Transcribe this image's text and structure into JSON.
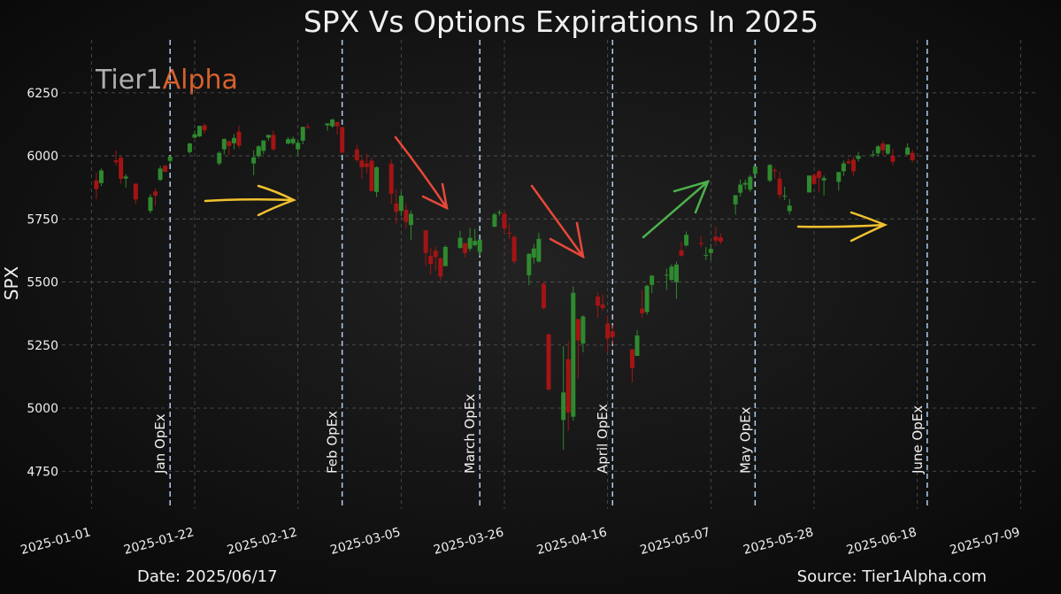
{
  "chart_data": {
    "type": "candlestick",
    "title": "SPX Vs Options Expirations In 2025",
    "y_label": "SPX",
    "brand": [
      "Tier1",
      "Alpha"
    ],
    "footer_left": "Date: 2025/06/17",
    "footer_right": "Source: Tier1Alpha.com",
    "up_color": "#2f8a2f",
    "down_color": "#a31414",
    "grid": true,
    "xlim": [
      "2024-12-26",
      "2025-07-12"
    ],
    "xticks": [
      "2025-01-01",
      "2025-01-22",
      "2025-02-12",
      "2025-03-05",
      "2025-03-26",
      "2025-04-16",
      "2025-05-07",
      "2025-05-28",
      "2025-06-18",
      "2025-07-09"
    ],
    "ylim": [
      4600,
      6460
    ],
    "yticks": [
      4750,
      5000,
      5250,
      5500,
      5750,
      6000,
      6250
    ],
    "vlines": [
      {
        "x": "2025-01-17",
        "label": "Jan OpEx"
      },
      {
        "x": "2025-02-21",
        "label": "Feb OpEx"
      },
      {
        "x": "2025-03-21",
        "label": "March OpEx"
      },
      {
        "x": "2025-04-17",
        "label": "April OpEx"
      },
      {
        "x": "2025-05-16",
        "label": "May OpEx"
      },
      {
        "x": "2025-06-20",
        "label": "June OpEx"
      }
    ],
    "x": [
      "2025-01-02",
      "2025-01-03",
      "2025-01-06",
      "2025-01-07",
      "2025-01-08",
      "2025-01-10",
      "2025-01-13",
      "2025-01-14",
      "2025-01-15",
      "2025-01-16",
      "2025-01-17",
      "2025-01-21",
      "2025-01-22",
      "2025-01-23",
      "2025-01-24",
      "2025-01-27",
      "2025-01-28",
      "2025-01-29",
      "2025-01-30",
      "2025-01-31",
      "2025-02-03",
      "2025-02-04",
      "2025-02-05",
      "2025-02-06",
      "2025-02-07",
      "2025-02-10",
      "2025-02-11",
      "2025-02-12",
      "2025-02-13",
      "2025-02-14",
      "2025-02-18",
      "2025-02-19",
      "2025-02-20",
      "2025-02-21",
      "2025-02-24",
      "2025-02-25",
      "2025-02-26",
      "2025-02-27",
      "2025-02-28",
      "2025-03-03",
      "2025-03-04",
      "2025-03-05",
      "2025-03-06",
      "2025-03-07",
      "2025-03-10",
      "2025-03-11",
      "2025-03-12",
      "2025-03-13",
      "2025-03-14",
      "2025-03-17",
      "2025-03-18",
      "2025-03-19",
      "2025-03-20",
      "2025-03-21",
      "2025-03-24",
      "2025-03-25",
      "2025-03-26",
      "2025-03-27",
      "2025-03-28",
      "2025-03-31",
      "2025-04-01",
      "2025-04-02",
      "2025-04-03",
      "2025-04-04",
      "2025-04-07",
      "2025-04-08",
      "2025-04-09",
      "2025-04-10",
      "2025-04-11",
      "2025-04-14",
      "2025-04-15",
      "2025-04-16",
      "2025-04-17",
      "2025-04-21",
      "2025-04-22",
      "2025-04-23",
      "2025-04-24",
      "2025-04-25",
      "2025-04-28",
      "2025-04-29",
      "2025-04-30",
      "2025-05-01",
      "2025-05-02",
      "2025-05-05",
      "2025-05-06",
      "2025-05-07",
      "2025-05-08",
      "2025-05-09",
      "2025-05-12",
      "2025-05-13",
      "2025-05-14",
      "2025-05-15",
      "2025-05-16",
      "2025-05-19",
      "2025-05-20",
      "2025-05-21",
      "2025-05-22",
      "2025-05-23",
      "2025-05-27",
      "2025-05-28",
      "2025-05-29",
      "2025-05-30",
      "2025-06-02",
      "2025-06-03",
      "2025-06-04",
      "2025-06-05",
      "2025-06-06",
      "2025-06-09",
      "2025-06-10",
      "2025-06-11",
      "2025-06-12",
      "2025-06-13",
      "2025-06-16",
      "2025-06-17"
    ],
    "open": [
      5903,
      5892,
      5982,
      5993,
      5910,
      5890,
      5782,
      5859,
      5905,
      5961,
      5980,
      6015,
      6072,
      6077,
      6121,
      5970,
      6026,
      6058,
      6050,
      6096,
      5970,
      5999,
      6020,
      6072,
      6083,
      6049,
      6050,
      6026,
      6060,
      6115,
      6121,
      6117,
      6134,
      6114,
      6026,
      5982,
      5970,
      5981,
      5857,
      5969,
      5811,
      5782,
      5786,
      5726,
      5705,
      5603,
      5624,
      5594,
      5563,
      5635,
      5654,
      5632,
      5646,
      5619,
      5719,
      5776,
      5771,
      5695,
      5679,
      5527,
      5597,
      5581,
      5493,
      5293,
      4953,
      5194,
      4966,
      5353,
      5256,
      5442,
      5411,
      5335,
      5305,
      5233,
      5207,
      5395,
      5381,
      5489,
      5529,
      5508,
      5499,
      5626,
      5645,
      5655,
      5606,
      5615,
      5680,
      5677,
      5808,
      5854,
      5886,
      5866,
      5929,
      5902,
      5944,
      5910,
      5841,
      5781,
      5855,
      5925,
      5939,
      5903,
      5897,
      5939,
      5978,
      5985,
      5988,
      6005,
      6010,
      6049,
      6009,
      6000,
      6005,
      6012
    ],
    "high": [
      5935,
      5950,
      6021,
      6000,
      5927,
      5890,
      5848,
      5871,
      5960,
      5964,
      6000,
      6052,
      6100,
      6119,
      6128,
      6018,
      6069,
      6062,
      6087,
      6120,
      6022,
      6042,
      6062,
      6084,
      6101,
      6074,
      6076,
      6063,
      6116,
      6127,
      6129,
      6147,
      6134,
      6115,
      6043,
      5992,
      6009,
      5994,
      5959,
      5987,
      5866,
      5861,
      5812,
      5783,
      5705,
      5636,
      5642,
      5598,
      5645,
      5703,
      5654,
      5715,
      5711,
      5670,
      5775,
      5786,
      5783,
      5732,
      5685,
      5613,
      5651,
      5696,
      5501,
      5293,
      5246,
      5267,
      5482,
      5353,
      5369,
      5459,
      5450,
      5368,
      5328,
      5233,
      5309,
      5469,
      5489,
      5528,
      5553,
      5571,
      5581,
      5659,
      5700,
      5683,
      5638,
      5651,
      5720,
      5692,
      5845,
      5907,
      5906,
      5924,
      5958,
      5968,
      5953,
      5939,
      5878,
      5829,
      5922,
      5930,
      5943,
      5922,
      5937,
      5981,
      5991,
      5999,
      6016,
      6022,
      6043,
      6059,
      6046,
      6027,
      6050,
      6024
    ],
    "low": [
      5829,
      5880,
      5961,
      5890,
      5874,
      5809,
      5773,
      5802,
      5900,
      5935,
      5968,
      6009,
      6070,
      6075,
      6088,
      5962,
      6006,
      6004,
      6026,
      6030,
      5923,
      5990,
      6007,
      6060,
      6020,
      6045,
      6044,
      6003,
      6046,
      6108,
      6100,
      6111,
      6084,
      6009,
      5977,
      5908,
      5932,
      5858,
      5837,
      5810,
      5732,
      5762,
      5711,
      5667,
      5564,
      5528,
      5546,
      5505,
      5563,
      5632,
      5598,
      5622,
      5641,
      5604,
      5718,
      5763,
      5696,
      5671,
      5572,
      5488,
      5573,
      5578,
      5390,
      5069,
      4835,
      4910,
      4950,
      5116,
      5221,
      5358,
      5386,
      5221,
      5255,
      5102,
      5207,
      5356,
      5371,
      5456,
      5468,
      5505,
      5433,
      5600,
      5640,
      5637,
      5587,
      5587,
      5644,
      5650,
      5767,
      5838,
      5868,
      5856,
      5914,
      5895,
      5909,
      5830,
      5825,
      5767,
      5855,
      5885,
      5856,
      5843,
      5862,
      5921,
      5966,
      5921,
      5978,
      5994,
      6000,
      6003,
      6004,
      5963,
      6004,
      5974
    ],
    "close": [
      5868,
      5942,
      5975,
      5909,
      5918,
      5827,
      5836,
      5842,
      5950,
      5937,
      5997,
      6049,
      6086,
      6119,
      6101,
      6012,
      6067,
      6039,
      6071,
      6041,
      5994,
      6038,
      6061,
      6083,
      6026,
      6066,
      6068,
      6052,
      6115,
      6114,
      6129,
      6144,
      6117,
      6013,
      5983,
      5955,
      5956,
      5861,
      5955,
      5850,
      5778,
      5842,
      5738,
      5770,
      5615,
      5572,
      5599,
      5522,
      5639,
      5675,
      5615,
      5675,
      5663,
      5668,
      5768,
      5777,
      5712,
      5693,
      5581,
      5612,
      5633,
      5671,
      5397,
      5074,
      5062,
      4983,
      5457,
      5268,
      5363,
      5406,
      5397,
      5276,
      5283,
      5158,
      5288,
      5376,
      5485,
      5525,
      5529,
      5561,
      5569,
      5604,
      5687,
      5650,
      5607,
      5631,
      5664,
      5660,
      5844,
      5886,
      5893,
      5917,
      5958,
      5964,
      5940,
      5845,
      5842,
      5803,
      5922,
      5889,
      5912,
      5912,
      5936,
      5970,
      5971,
      5939,
      6000,
      6006,
      6038,
      6022,
      6045,
      5977,
      6033,
      5983
    ]
  }
}
